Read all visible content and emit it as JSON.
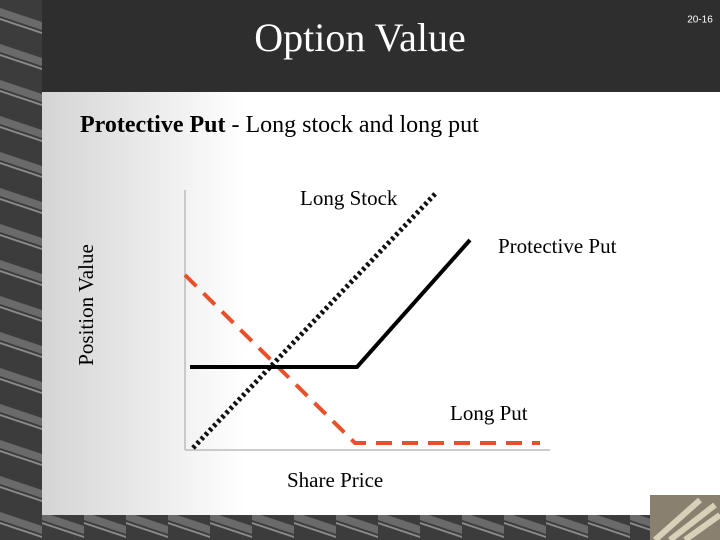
{
  "header": {
    "title": "Option Value",
    "slide_number": "20-16"
  },
  "subtitle": {
    "bold": "Protective Put",
    "rest": " - Long stock and long put"
  },
  "diagram": {
    "y_axis_label": "Position Value",
    "x_axis_label": "Share Price",
    "lines": [
      {
        "label": "Long Stock"
      },
      {
        "label": "Protective Put"
      },
      {
        "label": "Long Put"
      }
    ]
  }
}
